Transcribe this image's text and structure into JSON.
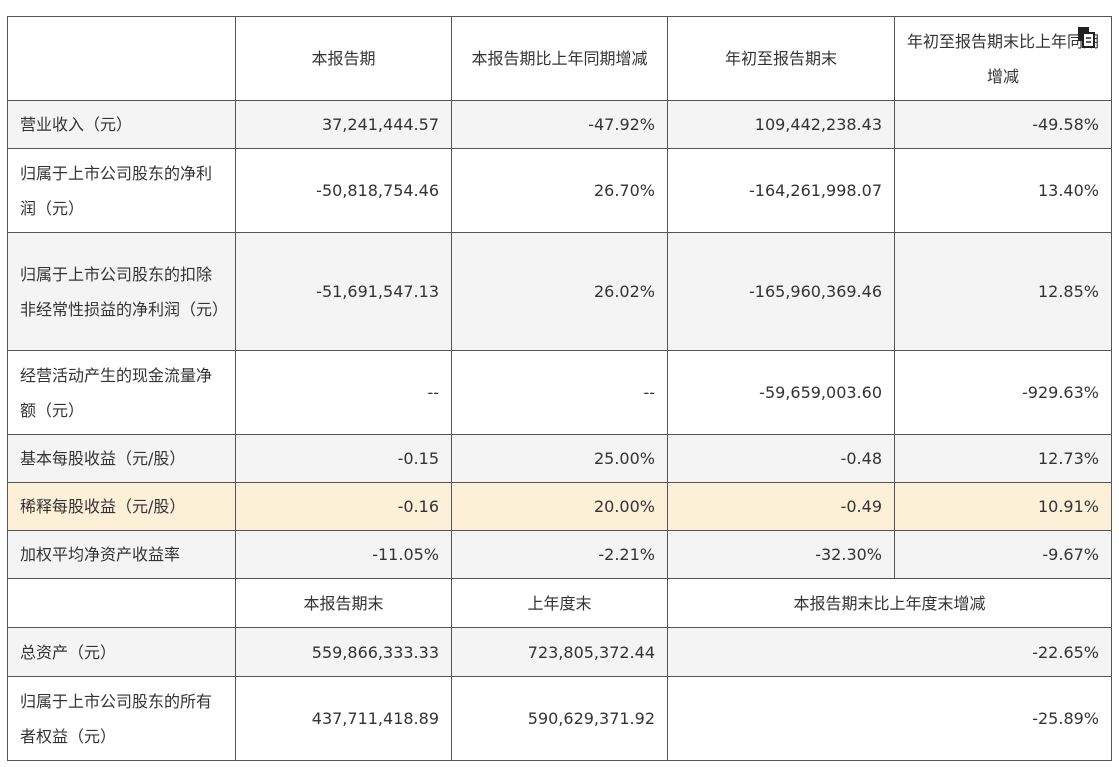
{
  "header": {
    "blank": "",
    "cols": [
      "本报告期",
      "本报告期比上年同期增减",
      "年初至报告期末",
      "年初至报告期末比上年同期增减"
    ]
  },
  "rows": [
    {
      "label": "营业收入（元）",
      "v": [
        "37,241,444.57",
        "-47.92%",
        "109,442,238.43",
        "-49.58%"
      ]
    },
    {
      "label": "归属于上市公司股东的净利润（元）",
      "v": [
        "-50,818,754.46",
        "26.70%",
        "-164,261,998.07",
        "13.40%"
      ]
    },
    {
      "label": "归属于上市公司股东的扣除非经常性损益的净利润（元）",
      "v": [
        "-51,691,547.13",
        "26.02%",
        "-165,960,369.46",
        "12.85%"
      ]
    },
    {
      "label": "经营活动产生的现金流量净额（元）",
      "v": [
        "--",
        "--",
        "-59,659,003.60",
        "-929.63%"
      ]
    },
    {
      "label": "基本每股收益（元/股）",
      "v": [
        "-0.15",
        "25.00%",
        "-0.48",
        "12.73%"
      ]
    },
    {
      "label": "稀释每股收益（元/股）",
      "v": [
        "-0.16",
        "20.00%",
        "-0.49",
        "10.91%"
      ]
    },
    {
      "label": "加权平均净资产收益率",
      "v": [
        "-11.05%",
        "-2.21%",
        "-32.30%",
        "-9.67%"
      ]
    }
  ],
  "header2": {
    "blank": "",
    "cols": [
      "本报告期末",
      "上年度末",
      "本报告期末比上年度末增减"
    ]
  },
  "rows2": [
    {
      "label": "总资产（元）",
      "v": [
        "559,866,333.33",
        "723,805,372.44",
        "-22.65%"
      ]
    },
    {
      "label": "归属于上市公司股东的所有者权益（元）",
      "v": [
        "437,711,418.89",
        "590,629,371.92",
        "-25.89%"
      ]
    }
  ],
  "icons": {
    "copy": "copy-icon"
  },
  "colors": {
    "highlight_row": "#fdf0d9",
    "stripe": "#f4f4f4",
    "border": "#555555"
  }
}
